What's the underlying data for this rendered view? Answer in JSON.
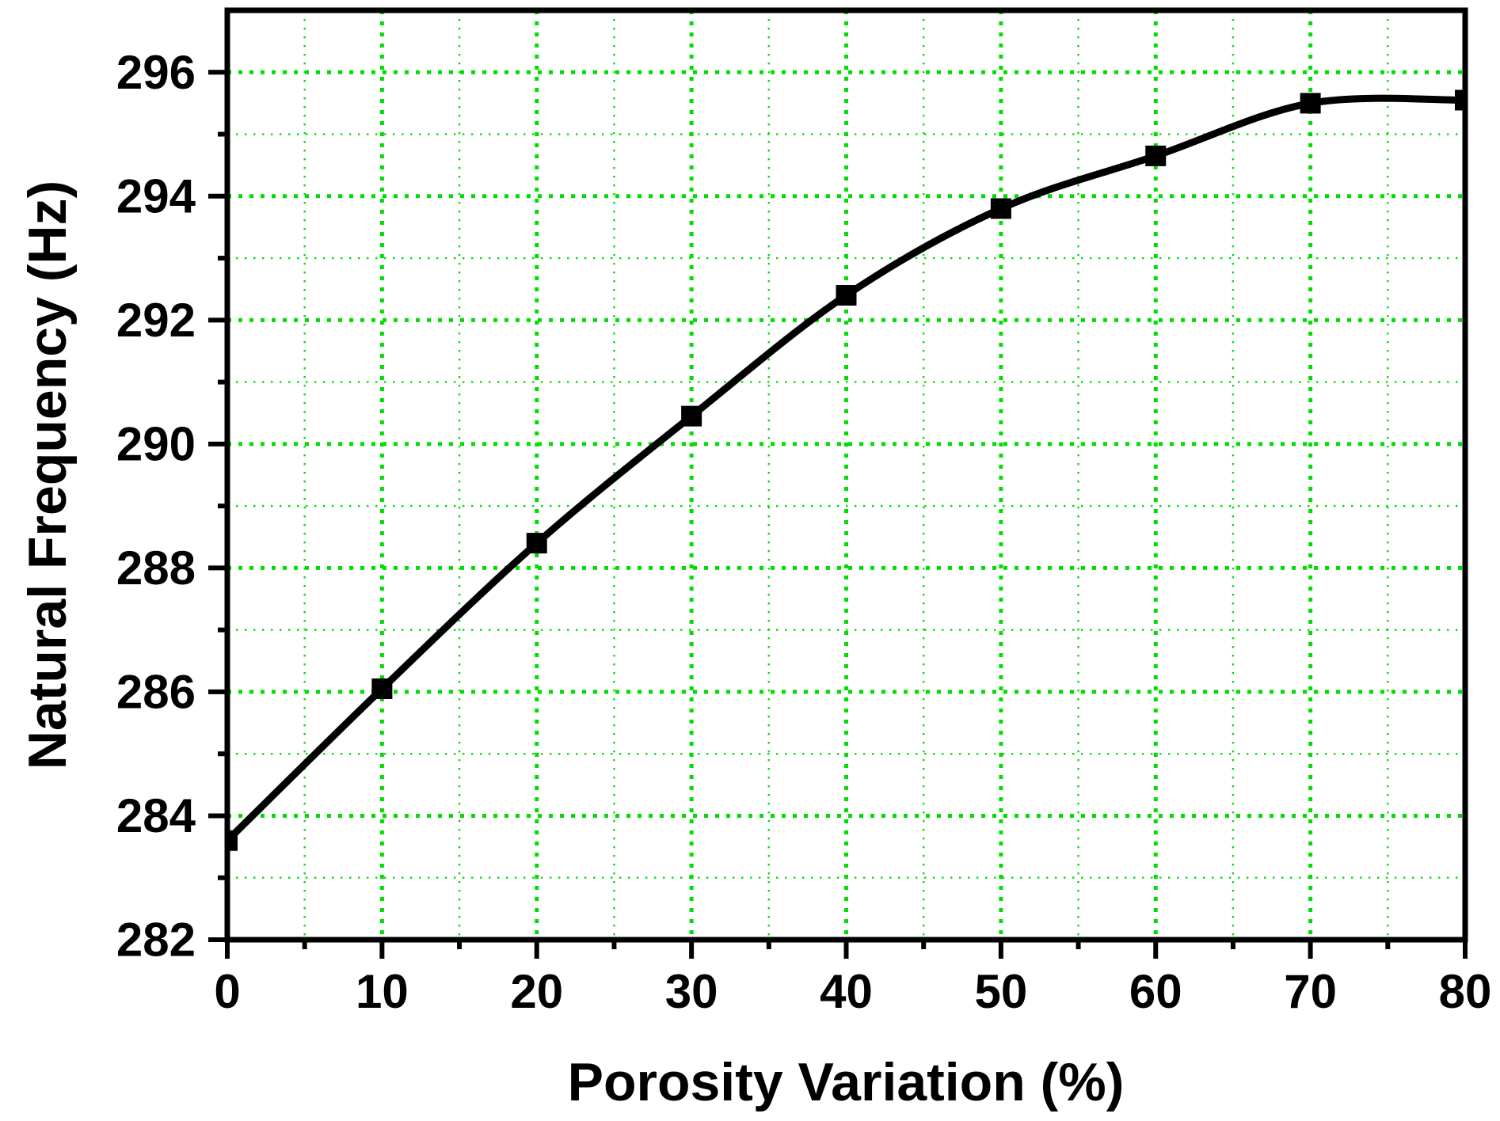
{
  "chart_data": {
    "type": "line",
    "title": "",
    "xlabel": "Porosity Variation (%)",
    "ylabel": "Natural Frequency (Hz)",
    "x": [
      0,
      10,
      20,
      30,
      40,
      50,
      60,
      70,
      80
    ],
    "series": [
      {
        "name": "Natural Frequency",
        "values": [
          283.6,
          286.05,
          288.4,
          290.45,
          292.4,
          293.8,
          294.65,
          295.5,
          295.55
        ]
      }
    ],
    "xlim": [
      0,
      80
    ],
    "ylim": [
      282,
      297
    ],
    "x_major_ticks": [
      0,
      10,
      20,
      30,
      40,
      50,
      60,
      70,
      80
    ],
    "x_minor_ticks": [
      5,
      15,
      25,
      35,
      45,
      55,
      65,
      75
    ],
    "y_major_ticks": [
      282,
      284,
      286,
      288,
      290,
      292,
      294,
      296
    ],
    "y_minor_ticks": [
      283,
      285,
      287,
      289,
      291,
      293,
      295
    ],
    "x_major_tick_labels": [
      "0",
      "10",
      "20",
      "30",
      "40",
      "50",
      "60",
      "70",
      "80"
    ],
    "y_major_tick_labels": [
      "282",
      "284",
      "286",
      "288",
      "290",
      "292",
      "294",
      "296"
    ],
    "grid": {
      "visible": true,
      "style": "dotted",
      "on_minor": true
    },
    "legend": null,
    "marker": "square",
    "colors": {
      "grid": "#00dd00",
      "line": "#000000",
      "marker": "#000000",
      "axis": "#000000",
      "background": "#ffffff"
    }
  }
}
